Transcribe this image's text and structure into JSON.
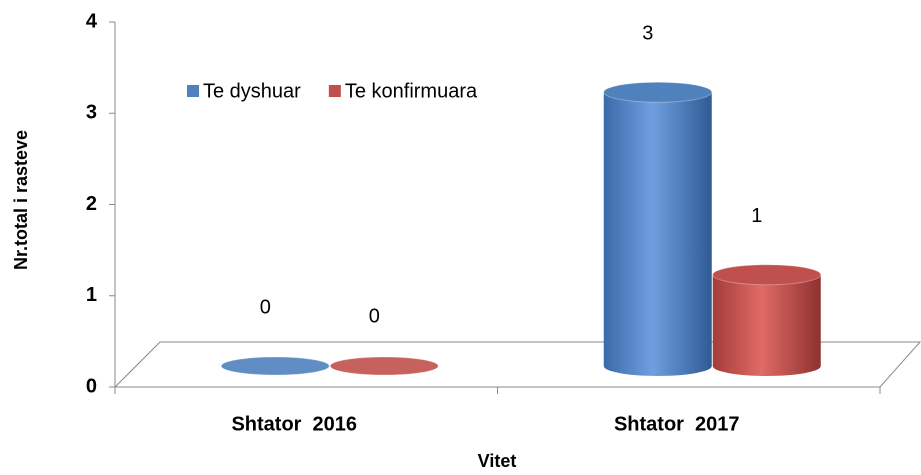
{
  "chart_data": {
    "type": "bar3d",
    "categories": [
      "Shtator  2016",
      "Shtator  2017"
    ],
    "series": [
      {
        "name": "Te dyshuar",
        "color": "#4f81bd",
        "values": [
          0,
          3
        ]
      },
      {
        "name": "Te konfirmuara",
        "color": "#c0504d",
        "values": [
          0,
          1
        ]
      }
    ],
    "ylim": [
      0,
      4
    ],
    "yticks": [
      0,
      1,
      2,
      3,
      4
    ],
    "y_label": "Nr.total i rasteve",
    "x_label": "Vitet",
    "legend": "top-left",
    "grid": false
  }
}
